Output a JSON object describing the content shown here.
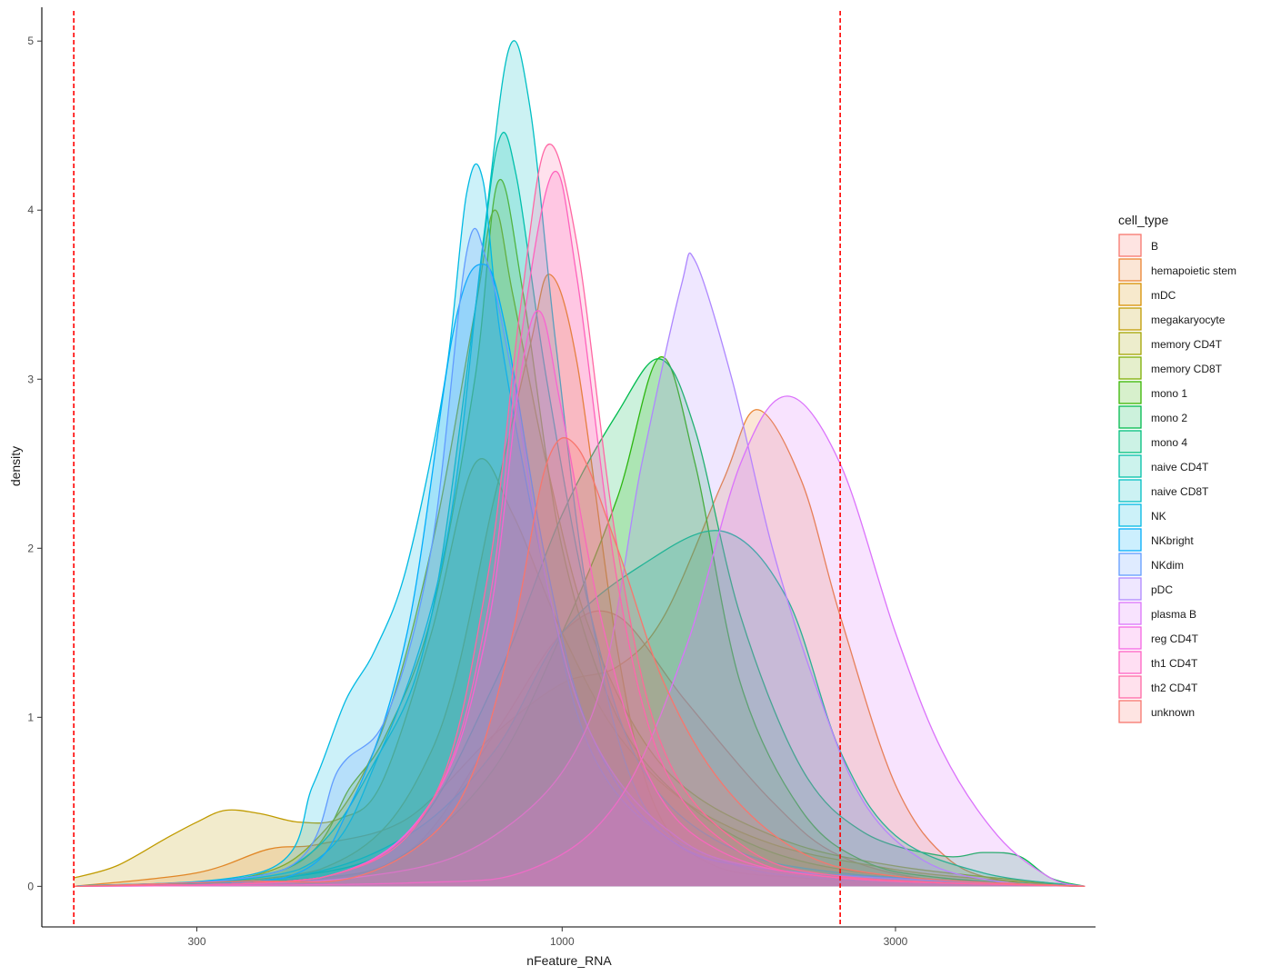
{
  "chart_data": {
    "type": "area",
    "x_scale": "log10",
    "xlabel": "nFeature_RNA",
    "ylabel": "density",
    "xlim": [
      180,
      5800
    ],
    "ylim": [
      -0.24,
      5.2
    ],
    "x_ticks": [
      300,
      1000,
      3000
    ],
    "x_tick_labels": [
      "300",
      "1000",
      "3000"
    ],
    "y_ticks": [
      0,
      1,
      2,
      3,
      4,
      5
    ],
    "y_tick_labels": [
      "0",
      "1",
      "2",
      "3",
      "4",
      "5"
    ],
    "grid": false,
    "vlines": [
      200,
      2500
    ],
    "vline_color": "#ff0000",
    "legend_title": "cell_type",
    "legend_position": "right",
    "series": [
      {
        "name": "B",
        "color": "#F8766D",
        "points": [
          [
            200,
            0
          ],
          [
            400,
            0.02
          ],
          [
            600,
            0.2
          ],
          [
            800,
            0.9
          ],
          [
            1000,
            1.5
          ],
          [
            1200,
            1.6
          ],
          [
            1500,
            1.1
          ],
          [
            2000,
            0.5
          ],
          [
            2500,
            0.18
          ],
          [
            3500,
            0.03
          ],
          [
            5600,
            0
          ]
        ]
      },
      {
        "name": "hemapoietic stem",
        "color": "#EA8331",
        "points": [
          [
            200,
            0
          ],
          [
            300,
            0.08
          ],
          [
            380,
            0.22
          ],
          [
            450,
            0.25
          ],
          [
            600,
            0.4
          ],
          [
            800,
            0.9
          ],
          [
            1000,
            1.2
          ],
          [
            1200,
            1.3
          ],
          [
            1400,
            1.6
          ],
          [
            1700,
            2.4
          ],
          [
            1900,
            2.82
          ],
          [
            2200,
            2.4
          ],
          [
            2500,
            1.6
          ],
          [
            3000,
            0.6
          ],
          [
            3600,
            0.15
          ],
          [
            4500,
            0.02
          ],
          [
            5600,
            0
          ]
        ]
      },
      {
        "name": "mDC",
        "color": "#D89000",
        "points": [
          [
            200,
            0
          ],
          [
            450,
            0.1
          ],
          [
            650,
            0.8
          ],
          [
            800,
            2.3
          ],
          [
            900,
            3.2
          ],
          [
            960,
            3.62
          ],
          [
            1050,
            3.1
          ],
          [
            1200,
            1.4
          ],
          [
            1350,
            0.5
          ],
          [
            1600,
            0.15
          ],
          [
            2200,
            0.05
          ],
          [
            5600,
            0
          ]
        ]
      },
      {
        "name": "megakaryocyte",
        "color": "#C09B00",
        "points": [
          [
            200,
            0.05
          ],
          [
            230,
            0.12
          ],
          [
            270,
            0.28
          ],
          [
            300,
            0.38
          ],
          [
            330,
            0.45
          ],
          [
            370,
            0.43
          ],
          [
            420,
            0.38
          ],
          [
            480,
            0.4
          ],
          [
            550,
            0.6
          ],
          [
            650,
            1.5
          ],
          [
            750,
            2.5
          ],
          [
            850,
            2.2
          ],
          [
            1000,
            1.5
          ],
          [
            1200,
            0.9
          ],
          [
            1500,
            0.5
          ],
          [
            2000,
            0.25
          ],
          [
            2800,
            0.12
          ],
          [
            3600,
            0.06
          ],
          [
            5600,
            0
          ]
        ]
      },
      {
        "name": "memory CD4T",
        "color": "#A3A500",
        "points": [
          [
            200,
            0
          ],
          [
            350,
            0.05
          ],
          [
            450,
            0.3
          ],
          [
            550,
            0.9
          ],
          [
            650,
            2.0
          ],
          [
            750,
            3.4
          ],
          [
            800,
            4.0
          ],
          [
            850,
            3.5
          ],
          [
            950,
            2.5
          ],
          [
            1100,
            1.5
          ],
          [
            1400,
            0.7
          ],
          [
            2000,
            0.3
          ],
          [
            3000,
            0.12
          ],
          [
            5600,
            0
          ]
        ]
      },
      {
        "name": "memory CD8T",
        "color": "#7CAE00",
        "points": [
          [
            200,
            0
          ],
          [
            400,
            0.1
          ],
          [
            500,
            0.6
          ],
          [
            560,
            0.9
          ],
          [
            650,
            1.6
          ],
          [
            750,
            3.0
          ],
          [
            810,
            4.17
          ],
          [
            880,
            3.5
          ],
          [
            1000,
            2.0
          ],
          [
            1200,
            1.0
          ],
          [
            1500,
            0.5
          ],
          [
            2000,
            0.2
          ],
          [
            3000,
            0.06
          ],
          [
            5600,
            0
          ]
        ]
      },
      {
        "name": "mono 1",
        "color": "#39B600",
        "points": [
          [
            200,
            0
          ],
          [
            450,
            0.05
          ],
          [
            600,
            0.2
          ],
          [
            800,
            0.7
          ],
          [
            1000,
            1.5
          ],
          [
            1200,
            2.3
          ],
          [
            1380,
            3.13
          ],
          [
            1550,
            2.5
          ],
          [
            1800,
            1.2
          ],
          [
            2200,
            0.45
          ],
          [
            2700,
            0.15
          ],
          [
            3500,
            0.05
          ],
          [
            5600,
            0
          ]
        ]
      },
      {
        "name": "mono 2",
        "color": "#00BB4E",
        "points": [
          [
            200,
            0
          ],
          [
            400,
            0.05
          ],
          [
            600,
            0.3
          ],
          [
            800,
            1.2
          ],
          [
            1000,
            2.2
          ],
          [
            1200,
            2.8
          ],
          [
            1380,
            3.12
          ],
          [
            1550,
            2.7
          ],
          [
            1800,
            1.6
          ],
          [
            2200,
            0.7
          ],
          [
            2700,
            0.32
          ],
          [
            3500,
            0.18
          ],
          [
            4000,
            0.2
          ],
          [
            4500,
            0.18
          ],
          [
            5000,
            0.05
          ],
          [
            5600,
            0
          ]
        ]
      },
      {
        "name": "mono 4",
        "color": "#00BF7D",
        "points": [
          [
            200,
            0
          ],
          [
            400,
            0.05
          ],
          [
            600,
            0.3
          ],
          [
            800,
            0.8
          ],
          [
            1000,
            1.5
          ],
          [
            1300,
            1.9
          ],
          [
            1700,
            2.1
          ],
          [
            2100,
            1.7
          ],
          [
            2500,
            0.8
          ],
          [
            3000,
            0.3
          ],
          [
            4000,
            0.08
          ],
          [
            5600,
            0
          ]
        ]
      },
      {
        "name": "naive CD4T",
        "color": "#00C1A7",
        "points": [
          [
            200,
            0
          ],
          [
            400,
            0.1
          ],
          [
            550,
            0.8
          ],
          [
            650,
            1.6
          ],
          [
            750,
            3.4
          ],
          [
            810,
            4.4
          ],
          [
            860,
            4.2
          ],
          [
            950,
            3.0
          ],
          [
            1100,
            1.6
          ],
          [
            1300,
            0.7
          ],
          [
            1700,
            0.25
          ],
          [
            2500,
            0.08
          ],
          [
            5600,
            0
          ]
        ]
      },
      {
        "name": "naive CD8T",
        "color": "#00BFC4",
        "points": [
          [
            200,
            0
          ],
          [
            420,
            0.1
          ],
          [
            550,
            0.8
          ],
          [
            680,
            2.0
          ],
          [
            770,
            3.8
          ],
          [
            840,
            4.96
          ],
          [
            900,
            4.6
          ],
          [
            980,
            3.2
          ],
          [
            1100,
            1.6
          ],
          [
            1300,
            0.5
          ],
          [
            1700,
            0.15
          ],
          [
            2500,
            0.04
          ],
          [
            5600,
            0
          ]
        ]
      },
      {
        "name": "NK",
        "color": "#00B9E3",
        "points": [
          [
            200,
            0
          ],
          [
            380,
            0.1
          ],
          [
            440,
            0.6
          ],
          [
            490,
            1.1
          ],
          [
            540,
            1.4
          ],
          [
            600,
            1.9
          ],
          [
            680,
            3.0
          ],
          [
            730,
            4.1
          ],
          [
            770,
            4.18
          ],
          [
            820,
            3.2
          ],
          [
            950,
            1.8
          ],
          [
            1100,
            0.8
          ],
          [
            1400,
            0.3
          ],
          [
            2000,
            0.1
          ],
          [
            5600,
            0
          ]
        ]
      },
      {
        "name": "NKbright",
        "color": "#00ADFA",
        "points": [
          [
            200,
            0
          ],
          [
            400,
            0.05
          ],
          [
            500,
            0.5
          ],
          [
            600,
            1.5
          ],
          [
            700,
            3.3
          ],
          [
            770,
            3.68
          ],
          [
            830,
            3.3
          ],
          [
            950,
            1.9
          ],
          [
            1100,
            0.9
          ],
          [
            1400,
            0.3
          ],
          [
            2000,
            0.1
          ],
          [
            5600,
            0
          ]
        ]
      },
      {
        "name": "NKdim",
        "color": "#619CFF",
        "points": [
          [
            200,
            0
          ],
          [
            400,
            0.1
          ],
          [
            480,
            0.7
          ],
          [
            560,
            1.0
          ],
          [
            650,
            2.0
          ],
          [
            730,
            3.75
          ],
          [
            780,
            3.7
          ],
          [
            850,
            3.0
          ],
          [
            950,
            1.8
          ],
          [
            1100,
            0.9
          ],
          [
            1400,
            0.35
          ],
          [
            2000,
            0.1
          ],
          [
            5600,
            0
          ]
        ]
      },
      {
        "name": "pDC",
        "color": "#AE87FF",
        "points": [
          [
            200,
            0
          ],
          [
            500,
            0.05
          ],
          [
            800,
            0.3
          ],
          [
            1100,
            1.0
          ],
          [
            1300,
            2.5
          ],
          [
            1480,
            3.55
          ],
          [
            1550,
            3.7
          ],
          [
            1750,
            3.0
          ],
          [
            2000,
            2.0
          ],
          [
            2300,
            1.2
          ],
          [
            2700,
            0.5
          ],
          [
            3300,
            0.15
          ],
          [
            4200,
            0.03
          ],
          [
            5600,
            0
          ]
        ]
      },
      {
        "name": "plasma B",
        "color": "#DB72FB",
        "points": [
          [
            200,
            0
          ],
          [
            600,
            0.02
          ],
          [
            900,
            0.1
          ],
          [
            1200,
            0.5
          ],
          [
            1500,
            1.4
          ],
          [
            1800,
            2.5
          ],
          [
            2100,
            2.9
          ],
          [
            2500,
            2.5
          ],
          [
            3000,
            1.5
          ],
          [
            3500,
            0.8
          ],
          [
            4200,
            0.3
          ],
          [
            5000,
            0.05
          ],
          [
            5600,
            0
          ]
        ]
      },
      {
        "name": "reg CD4T",
        "color": "#F564E3",
        "points": [
          [
            200,
            0
          ],
          [
            450,
            0.05
          ],
          [
            650,
            0.5
          ],
          [
            780,
            1.5
          ],
          [
            870,
            3.0
          ],
          [
            930,
            3.4
          ],
          [
            1000,
            2.8
          ],
          [
            1150,
            1.5
          ],
          [
            1350,
            0.6
          ],
          [
            1700,
            0.2
          ],
          [
            2500,
            0.05
          ],
          [
            5600,
            0
          ]
        ]
      },
      {
        "name": "th1 CD4T",
        "color": "#FF61C3",
        "points": [
          [
            200,
            0
          ],
          [
            450,
            0.05
          ],
          [
            650,
            0.5
          ],
          [
            780,
            1.6
          ],
          [
            870,
            3.2
          ],
          [
            970,
            4.22
          ],
          [
            1050,
            3.6
          ],
          [
            1200,
            1.8
          ],
          [
            1400,
            0.7
          ],
          [
            1800,
            0.2
          ],
          [
            2500,
            0.05
          ],
          [
            5600,
            0
          ]
        ]
      },
      {
        "name": "th2 CD4T",
        "color": "#FF67A4",
        "points": [
          [
            200,
            0
          ],
          [
            450,
            0.05
          ],
          [
            650,
            0.5
          ],
          [
            780,
            1.8
          ],
          [
            870,
            3.4
          ],
          [
            950,
            4.38
          ],
          [
            1050,
            3.8
          ],
          [
            1200,
            2.0
          ],
          [
            1400,
            0.8
          ],
          [
            1800,
            0.25
          ],
          [
            2500,
            0.06
          ],
          [
            5600,
            0
          ]
        ]
      },
      {
        "name": "unknown",
        "color": "#F8766D",
        "points": [
          [
            200,
            0
          ],
          [
            350,
            0.03
          ],
          [
            500,
            0.05
          ],
          [
            650,
            0.3
          ],
          [
            750,
            0.7
          ],
          [
            850,
            1.5
          ],
          [
            950,
            2.5
          ],
          [
            1050,
            2.6
          ],
          [
            1200,
            2.0
          ],
          [
            1400,
            1.2
          ],
          [
            1700,
            0.6
          ],
          [
            2200,
            0.2
          ],
          [
            3000,
            0.06
          ],
          [
            5600,
            0
          ]
        ]
      }
    ]
  }
}
